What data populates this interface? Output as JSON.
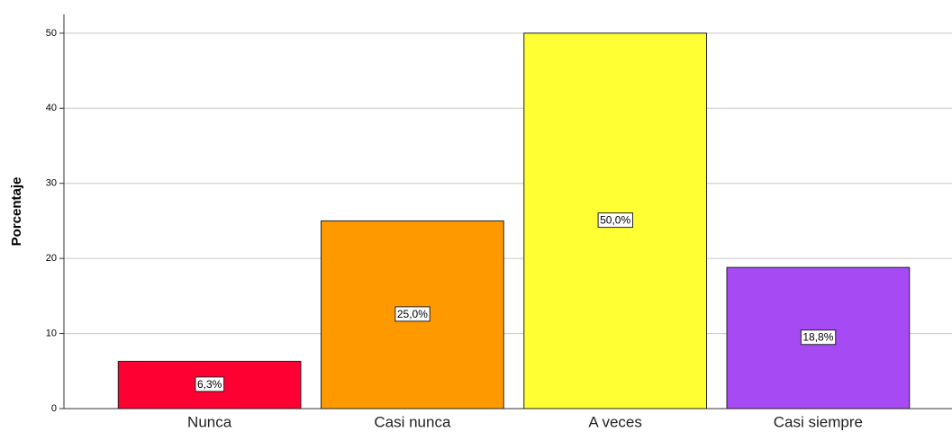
{
  "chart_data": {
    "type": "bar",
    "y_label": "Porcentaje",
    "categories": [
      "Nunca",
      "Casi nunca",
      "A veces",
      "Casi siempre"
    ],
    "values": [
      6.3,
      25.0,
      50.0,
      18.8
    ],
    "value_labels": [
      "6,3%",
      "25,0%",
      "50,0%",
      "18,8%"
    ],
    "colors": [
      "#ff0033",
      "#ff9900",
      "#ffff33",
      "#a64bf4"
    ],
    "ylim": [
      0,
      52.5
    ],
    "yticks": [
      0,
      10,
      20,
      30,
      40,
      50
    ],
    "grid": true
  }
}
